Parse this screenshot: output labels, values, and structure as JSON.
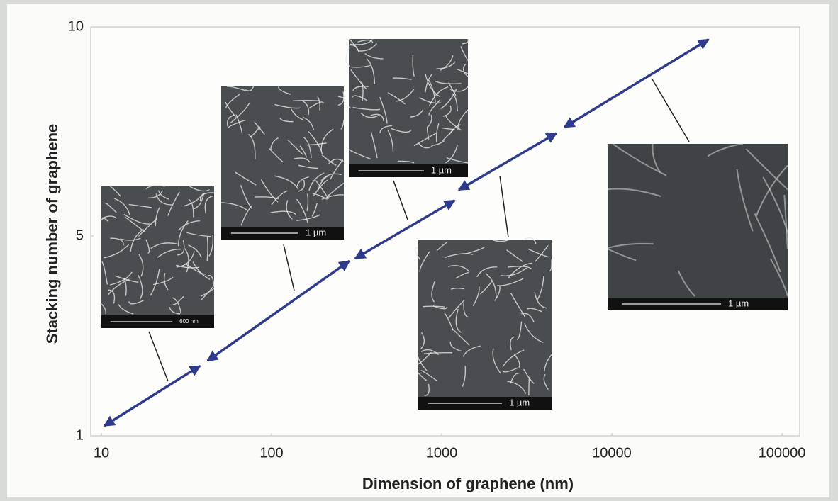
{
  "chart_data": {
    "type": "segments",
    "x_label": "Dimension of graphene  (nm)",
    "y_label": "Stacking number of graphene",
    "xlim": [
      10,
      100000
    ],
    "xticks": [
      10,
      100,
      1000,
      10000,
      100000
    ],
    "xscale": "log",
    "ylim": [
      1,
      10
    ],
    "yticks": [
      1,
      5,
      10
    ],
    "color": "#2e3a8c",
    "segments": [
      {
        "x": [
          10.4,
          38
        ],
        "values": [
          1.2,
          2.4
        ]
      },
      {
        "x": [
          42,
          287
        ],
        "values": [
          2.5,
          4.5
        ]
      },
      {
        "x": [
          310,
          1190
        ],
        "values": [
          4.55,
          5.85
        ]
      },
      {
        "x": [
          1260,
          4730
        ],
        "values": [
          6.1,
          7.46
        ]
      },
      {
        "x": [
          5250,
          37000
        ],
        "values": [
          7.6,
          9.7
        ]
      }
    ],
    "image_labels": [
      "600 nm",
      "1 µm",
      "1 µm",
      "1 µm",
      "1 µm"
    ]
  }
}
